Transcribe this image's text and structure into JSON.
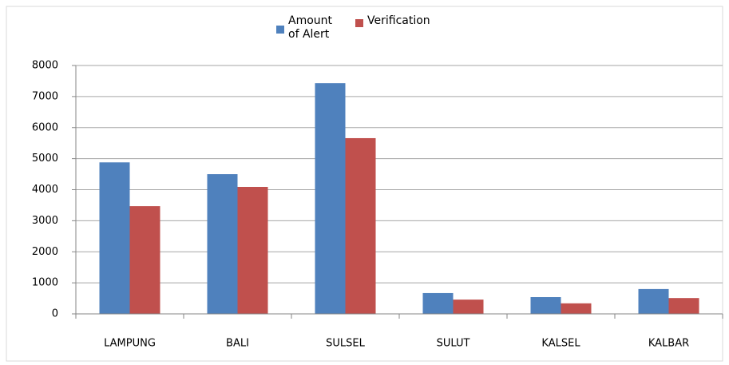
{
  "chart_data": {
    "type": "bar",
    "categories": [
      "LAMPUNG",
      "BALI",
      "SULSEL",
      "SULUT",
      "KALSEL",
      "KALBAR"
    ],
    "series": [
      {
        "name": "Amount of Alert",
        "color": "#4f81bd",
        "values": [
          4880,
          4500,
          7430,
          670,
          540,
          800
        ]
      },
      {
        "name": "Verification",
        "color": "#c0504d",
        "values": [
          3470,
          4090,
          5660,
          460,
          340,
          510
        ]
      }
    ],
    "ylim": [
      0,
      8000
    ],
    "yticks": [
      0,
      1000,
      2000,
      3000,
      4000,
      5000,
      6000,
      7000,
      8000
    ],
    "grid": true
  }
}
